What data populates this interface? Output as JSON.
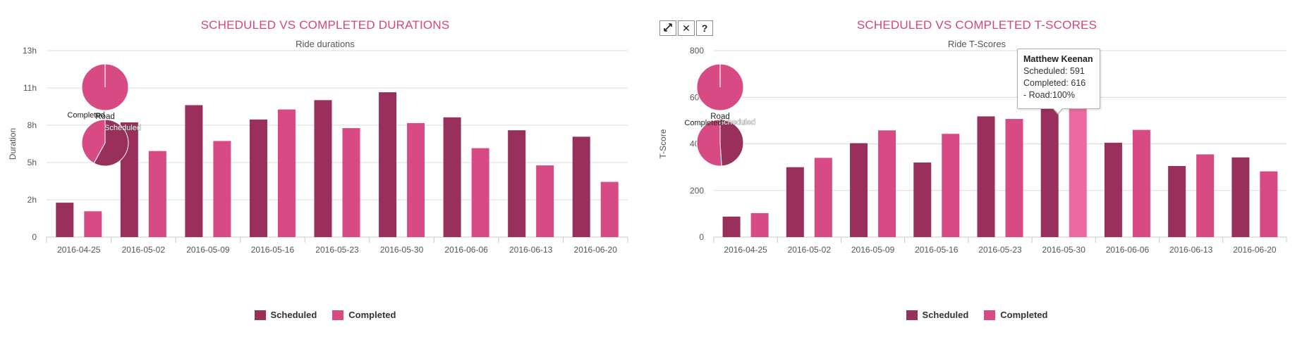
{
  "colors": {
    "scheduled": "#99305c",
    "completed": "#d84a84",
    "completed_hover": "#ea6aa1",
    "title": "#d6457f",
    "grid": "#dcdcdc"
  },
  "toolbar": {
    "expand_icon": "expand-icon",
    "close_label": "✕",
    "help_label": "?"
  },
  "tooltip": {
    "name": "Matthew Keenan",
    "line1": "Scheduled: 591",
    "line2": "Completed: 616",
    "line3": "- Road:100%"
  },
  "legend": {
    "scheduled": "Scheduled",
    "completed": "Completed"
  },
  "chart_data": [
    {
      "type": "bar",
      "title": "SCHEDULED VS COMPLETED DURATIONS",
      "subtitle": "Ride durations",
      "ylabel": "Duration",
      "xlabel": "",
      "ylim": [
        0,
        13
      ],
      "yticks": [
        0,
        2.6,
        5.2,
        7.8,
        10.4,
        13
      ],
      "ytick_labels": [
        "0",
        "2h",
        "5h",
        "8h",
        "11h",
        "13h"
      ],
      "categories": [
        "2016-04-25",
        "2016-05-02",
        "2016-05-09",
        "2016-05-16",
        "2016-05-23",
        "2016-05-30",
        "2016-06-06",
        "2016-06-13",
        "2016-06-20"
      ],
      "series": [
        {
          "name": "Scheduled",
          "values": [
            2.4,
            8.0,
            9.2,
            8.2,
            9.55,
            10.1,
            8.35,
            7.45,
            7.0
          ]
        },
        {
          "name": "Completed",
          "values": [
            1.8,
            6.0,
            6.7,
            8.9,
            7.6,
            7.95,
            6.2,
            5.0,
            3.85
          ]
        }
      ],
      "grid": true,
      "legend_position": "bottom-center",
      "inset_pies": [
        {
          "label": "Road",
          "slices": [
            {
              "name": "Road",
              "value": 100
            }
          ]
        },
        {
          "label": "",
          "slices": [
            {
              "name": "Scheduled",
              "value": 58
            },
            {
              "name": "Completed",
              "value": 42
            }
          ]
        }
      ]
    },
    {
      "type": "bar",
      "title": "SCHEDULED VS COMPLETED T-SCORES",
      "subtitle": "Ride T-Scores",
      "ylabel": "T-Score",
      "xlabel": "",
      "ylim": [
        0,
        800
      ],
      "yticks": [
        0,
        200,
        400,
        600,
        800
      ],
      "ytick_labels": [
        "0",
        "200",
        "400",
        "600",
        "800"
      ],
      "categories": [
        "2016-04-25",
        "2016-05-02",
        "2016-05-09",
        "2016-05-16",
        "2016-05-23",
        "2016-05-30",
        "2016-06-06",
        "2016-06-13",
        "2016-06-20"
      ],
      "series": [
        {
          "name": "Scheduled",
          "values": [
            88,
            300,
            403,
            320,
            518,
            591,
            405,
            305,
            342
          ]
        },
        {
          "name": "Completed",
          "values": [
            103,
            340,
            458,
            443,
            507,
            616,
            460,
            355,
            282
          ]
        }
      ],
      "grid": true,
      "legend_position": "bottom-center",
      "highlight": {
        "category": "2016-05-30",
        "series": "Completed"
      },
      "inset_pies": [
        {
          "label": "Road",
          "slices": [
            {
              "name": "Road",
              "value": 100
            }
          ]
        },
        {
          "label": "",
          "slices": [
            {
              "name": "Scheduled",
              "value": 49
            },
            {
              "name": "Completed",
              "value": 51
            }
          ]
        }
      ]
    }
  ]
}
